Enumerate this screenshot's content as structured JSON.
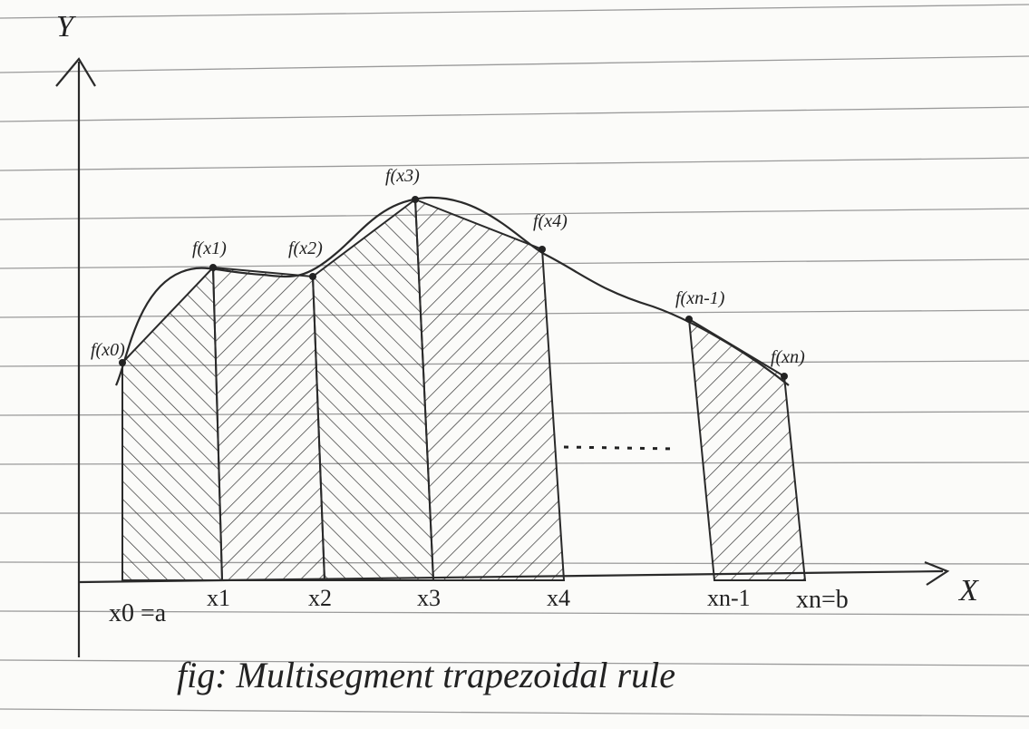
{
  "axes": {
    "y_label": "Y",
    "x_label": "X"
  },
  "function_labels": [
    "f(x0)",
    "f(x1)",
    "f(x2)",
    "f(x3)",
    "f(x4)",
    "f(xn-1)",
    "f(xn)"
  ],
  "x_labels": [
    "x0 =a",
    "x1",
    "x2",
    "x3",
    "x4",
    "xn-1",
    "xn=b"
  ],
  "caption": "fig: Multisegment trapezoidal rule"
}
